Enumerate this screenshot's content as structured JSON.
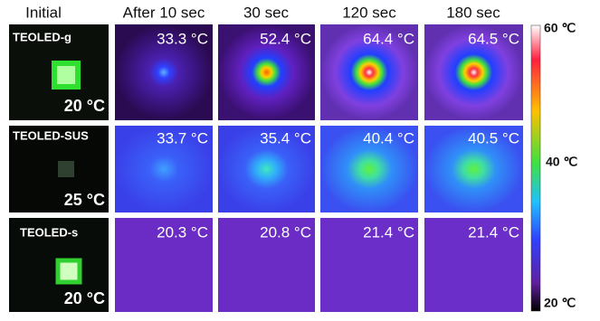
{
  "columns": [
    "Initial",
    "After 10 sec",
    "30 sec",
    "120 sec",
    "180 sec"
  ],
  "rows": [
    {
      "label": "TEOLED-g",
      "initial_temp": "20 °C",
      "readings": [
        "33.3 °C",
        "52.4 °C",
        "64.4 °C",
        "64.5 °C"
      ]
    },
    {
      "label": "TEOLED-SUS",
      "initial_temp": "25 °C",
      "readings": [
        "33.7 °C",
        "35.4 °C",
        "40.4 °C",
        "40.5 °C"
      ]
    },
    {
      "label": "TEOLED-s",
      "initial_temp": "20 °C",
      "readings": [
        "20.3 °C",
        "20.8 °C",
        "21.4 °C",
        "21.4 °C"
      ]
    }
  ],
  "colorbar": {
    "labels": [
      "60 ℃",
      "40 ℃",
      "20 ℃"
    ]
  }
}
